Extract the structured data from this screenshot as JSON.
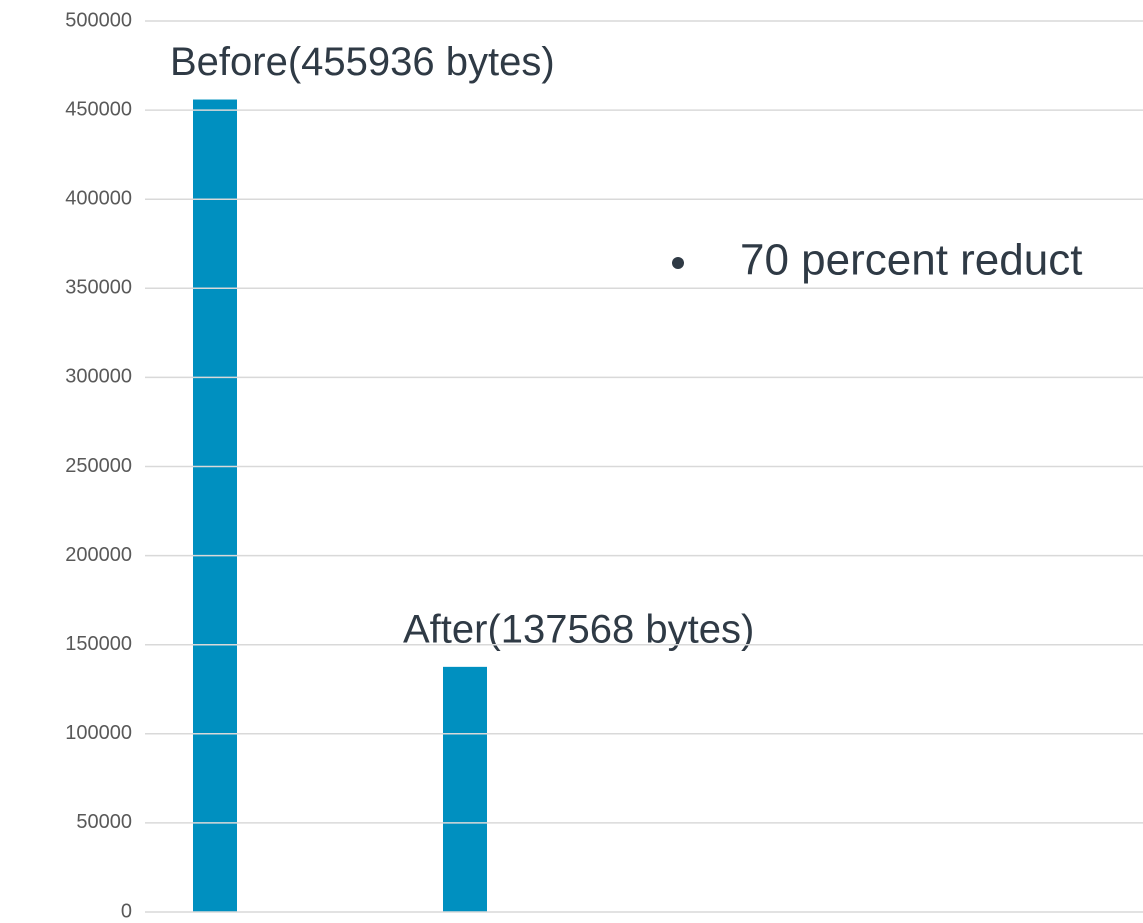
{
  "chart_data": {
    "type": "bar",
    "categories": [
      null,
      null
    ],
    "values": [
      455936,
      137568
    ],
    "value_labels": [
      "Before(455936 bytes)",
      "After(137568 bytes)"
    ],
    "color": "#0090c0",
    "ylim": [
      0,
      500000
    ],
    "yticks": [
      0,
      50000,
      100000,
      150000,
      200000,
      250000,
      300000,
      350000,
      400000,
      450000,
      500000
    ],
    "grid": true,
    "annotation": "70 percent reduct"
  }
}
